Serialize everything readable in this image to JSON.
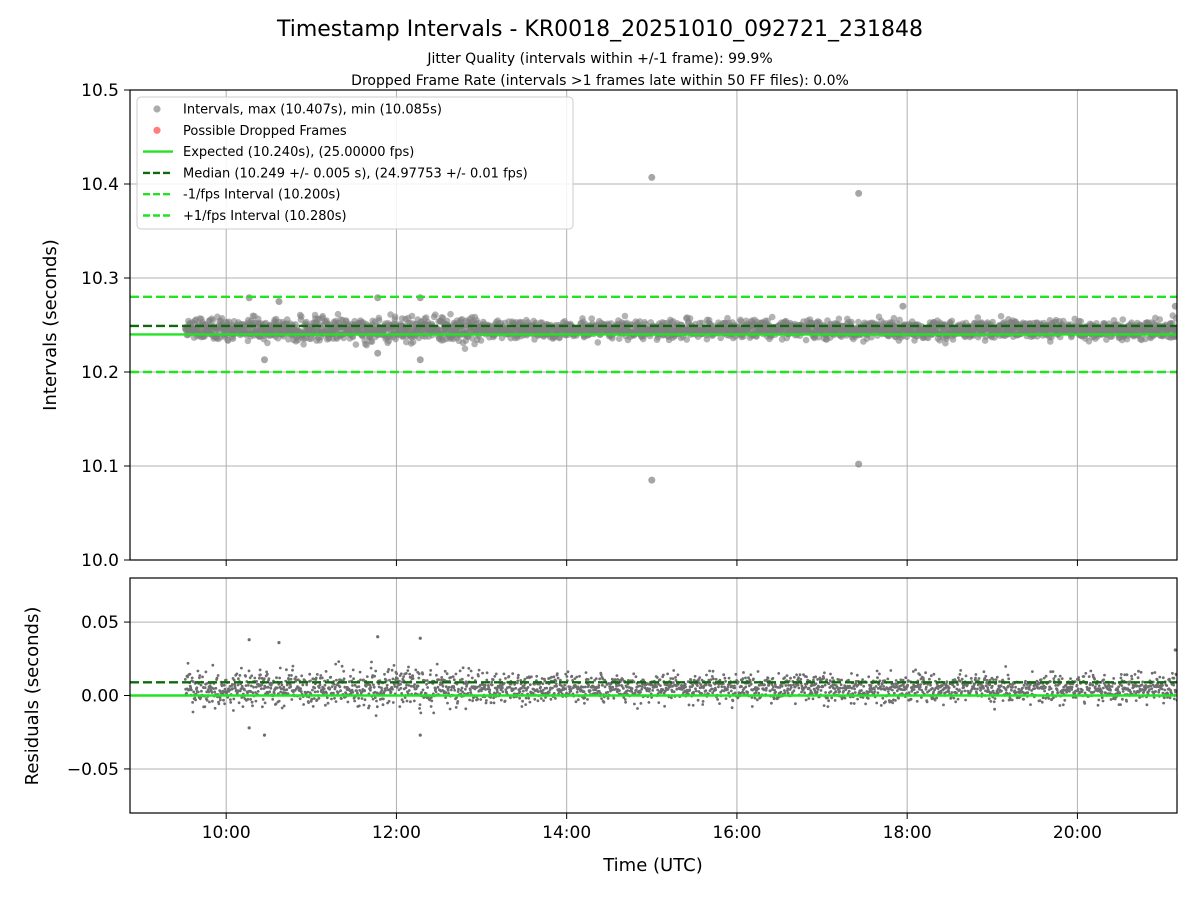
{
  "chart_data": [
    {
      "type": "scatter",
      "title": "Timestamp Intervals - KR0018_20251010_092721_231848",
      "subtitle_lines": [
        "Jitter Quality (intervals within +/-1 frame): 99.9%",
        "Dropped Frame Rate (intervals >1 frames late within 50 FF files): 0.0%"
      ],
      "xlabel": "",
      "ylabel": "Intervals (seconds)",
      "x_range_hours": [
        8.87,
        21.17
      ],
      "ylim": [
        10.0,
        10.5
      ],
      "yticks": [
        10.0,
        10.1,
        10.2,
        10.3,
        10.4,
        10.5
      ],
      "ytick_labels": [
        "10.0",
        "10.1",
        "10.2",
        "10.3",
        "10.4",
        "10.5"
      ],
      "xticks_hours": [
        10,
        12,
        14,
        16,
        18,
        20
      ],
      "grid": true,
      "legend_placement": "top-left",
      "legend": [
        {
          "label": "Intervals, max (10.407s), min (10.085s)",
          "kind": "marker",
          "color": "#808080"
        },
        {
          "label": "Possible Dropped Frames",
          "kind": "marker",
          "color": "#ff3b3b"
        },
        {
          "label": "Expected (10.240s), (25.00000 fps)",
          "kind": "solid",
          "color": "#22e322"
        },
        {
          "label": "Median (10.249 +/- 0.005 s), (24.97753 +/- 0.01 fps)",
          "kind": "dashed",
          "color": "#0d6b0d"
        },
        {
          "label": "-1/fps Interval (10.200s)",
          "kind": "dashed",
          "color": "#22e322"
        },
        {
          "label": "+1/fps Interval (10.280s)",
          "kind": "dashed",
          "color": "#22e322"
        }
      ],
      "reference_lines": [
        {
          "name": "Expected",
          "y": 10.24,
          "style": "solid",
          "color": "#22e322"
        },
        {
          "name": "Median",
          "y": 10.249,
          "style": "dashed",
          "color": "#0d6b0d"
        },
        {
          "name": "-1/fps",
          "y": 10.2,
          "style": "dashed",
          "color": "#22e322"
        },
        {
          "name": "+1/fps",
          "y": 10.28,
          "style": "dashed",
          "color": "#22e322"
        }
      ],
      "series": [
        {
          "name": "Intervals, max (10.407s), min (10.085s)",
          "color": "#808080",
          "time_span_hours": [
            9.52,
            21.17
          ],
          "typical_center": 10.245,
          "typical_spread": 0.008,
          "notable_points": [
            {
              "x": 15.0,
              "y": 10.407
            },
            {
              "x": 15.0,
              "y": 10.085
            },
            {
              "x": 17.43,
              "y": 10.39
            },
            {
              "x": 17.43,
              "y": 10.102
            },
            {
              "x": 10.27,
              "y": 10.279
            },
            {
              "x": 11.78,
              "y": 10.279
            },
            {
              "x": 12.28,
              "y": 10.279
            },
            {
              "x": 10.62,
              "y": 10.275
            },
            {
              "x": 17.95,
              "y": 10.27
            },
            {
              "x": 21.15,
              "y": 10.27
            },
            {
              "x": 10.45,
              "y": 10.213
            },
            {
              "x": 12.28,
              "y": 10.213
            },
            {
              "x": 11.78,
              "y": 10.22
            }
          ]
        },
        {
          "name": "Possible Dropped Frames",
          "color": "#ff3b3b",
          "points": []
        }
      ]
    },
    {
      "type": "scatter",
      "title": "",
      "xlabel": "Time (UTC)",
      "ylabel": "Residuals (seconds)",
      "x_range_hours": [
        8.87,
        21.17
      ],
      "ylim": [
        -0.08,
        0.08
      ],
      "yticks": [
        -0.05,
        0.0,
        0.05
      ],
      "ytick_labels": [
        "−0.05",
        "0.00",
        "0.05"
      ],
      "xticks_hours": [
        10,
        12,
        14,
        16,
        18,
        20
      ],
      "xtick_labels": [
        "10:00",
        "12:00",
        "14:00",
        "16:00",
        "18:00",
        "20:00"
      ],
      "grid": true,
      "reference_lines": [
        {
          "name": "Zero",
          "y": 0.0,
          "style": "solid",
          "color": "#22e322"
        },
        {
          "name": "Median offset",
          "y": 0.009,
          "style": "dashed",
          "color": "#0d6b0d"
        }
      ],
      "series": [
        {
          "name": "Residuals",
          "color": "#6e6e6e",
          "time_span_hours": [
            9.52,
            21.17
          ],
          "typical_center": 0.005,
          "typical_spread": 0.008,
          "notable_points": [
            {
              "x": 11.78,
              "y": 0.04
            },
            {
              "x": 12.28,
              "y": 0.039
            },
            {
              "x": 10.27,
              "y": 0.038
            },
            {
              "x": 10.62,
              "y": 0.036
            },
            {
              "x": 21.15,
              "y": 0.031
            },
            {
              "x": 10.45,
              "y": -0.027
            },
            {
              "x": 12.28,
              "y": -0.027
            },
            {
              "x": 10.27,
              "y": -0.022
            }
          ]
        }
      ]
    }
  ]
}
